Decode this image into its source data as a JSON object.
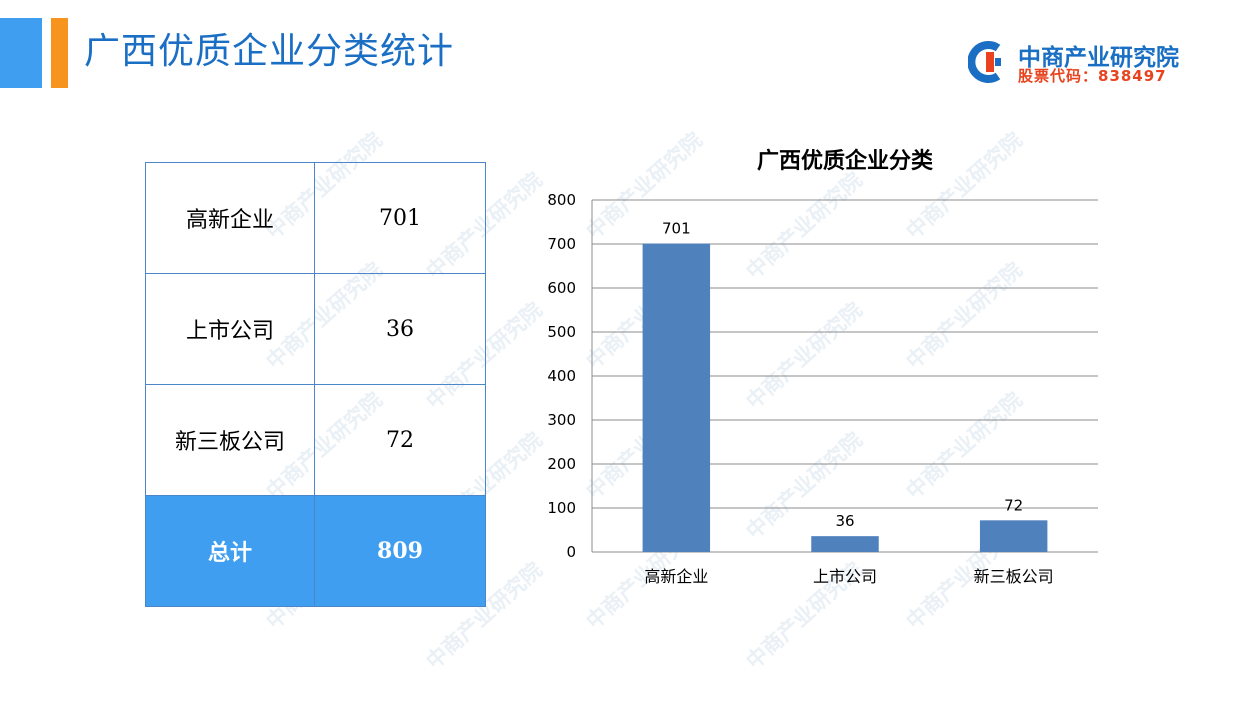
{
  "header": {
    "title": "广西优质企业分类统计",
    "accent_colors": [
      "#3f9ef0",
      "#f7941d"
    ]
  },
  "brand": {
    "name": "中商产业研究院",
    "stock_code": "股票代码：838497",
    "logo_icon": "zhongshang-c-logo-icon",
    "colors": {
      "primary": "#1a6fc4",
      "secondary": "#e8431e"
    }
  },
  "watermark": {
    "text": "中商产业研究院"
  },
  "table": {
    "rows": [
      {
        "label": "高新企业",
        "value": "701"
      },
      {
        "label": "上市公司",
        "value": "36"
      },
      {
        "label": "新三板公司",
        "value": "72"
      }
    ],
    "total": {
      "label": "总计",
      "value": "809"
    },
    "total_bg_color": "#3f9ef0"
  },
  "chart_data": {
    "type": "bar",
    "title": "广西优质企业分类",
    "categories": [
      "高新企业",
      "上市公司",
      "新三板公司"
    ],
    "values": [
      701,
      36,
      72
    ],
    "data_labels": [
      "701",
      "36",
      "72"
    ],
    "ylim": [
      0,
      800
    ],
    "yticks": [
      0,
      100,
      200,
      300,
      400,
      500,
      600,
      700,
      800
    ],
    "grid": true,
    "legend": "none",
    "bar_color": "#4f81bd"
  }
}
